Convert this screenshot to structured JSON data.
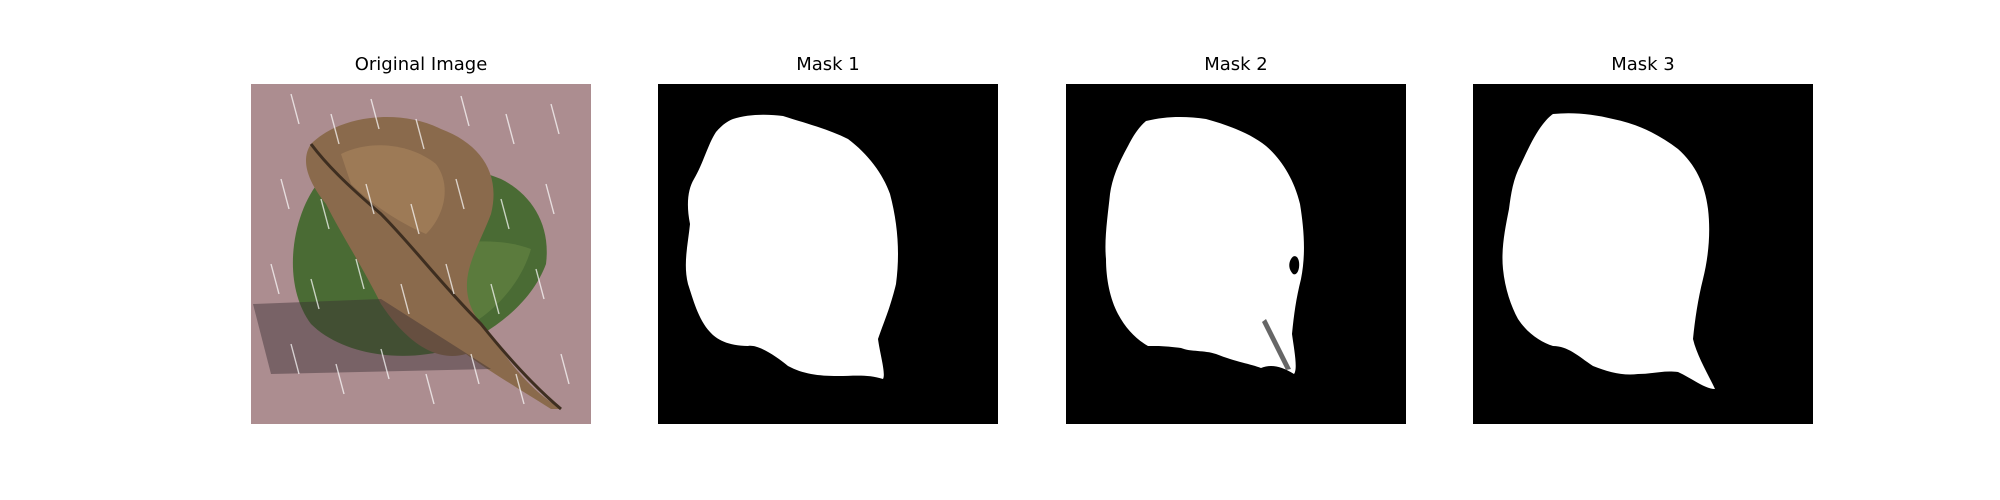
{
  "figure": {
    "panels": [
      {
        "title": "Original Image",
        "kind": "photo"
      },
      {
        "title": "Mask 1",
        "kind": "mask"
      },
      {
        "title": "Mask 2",
        "kind": "mask"
      },
      {
        "title": "Mask 3",
        "kind": "mask"
      }
    ]
  },
  "colors": {
    "figure_background": "#ffffff",
    "mask_background": "#000000",
    "mask_foreground": "#ffffff",
    "photo_background": "#a8898d",
    "leaf_green": "#4a6b34",
    "leaf_brown": "#8a6a4c"
  }
}
